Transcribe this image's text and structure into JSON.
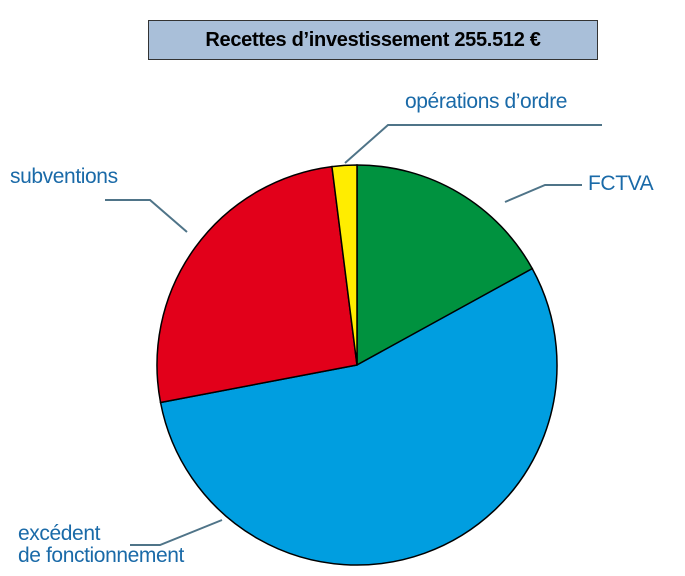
{
  "chart_data": {
    "type": "pie",
    "title": "Recettes d’investissement 255.512 €",
    "categories": [
      "FCTVA",
      "excédent\nde fonctionnement",
      "subventions",
      "opérations d’ordre"
    ],
    "values": [
      17,
      55,
      26,
      2
    ],
    "colors": [
      "#00923f",
      "#009ee0",
      "#e2001a",
      "#ffed00"
    ]
  }
}
